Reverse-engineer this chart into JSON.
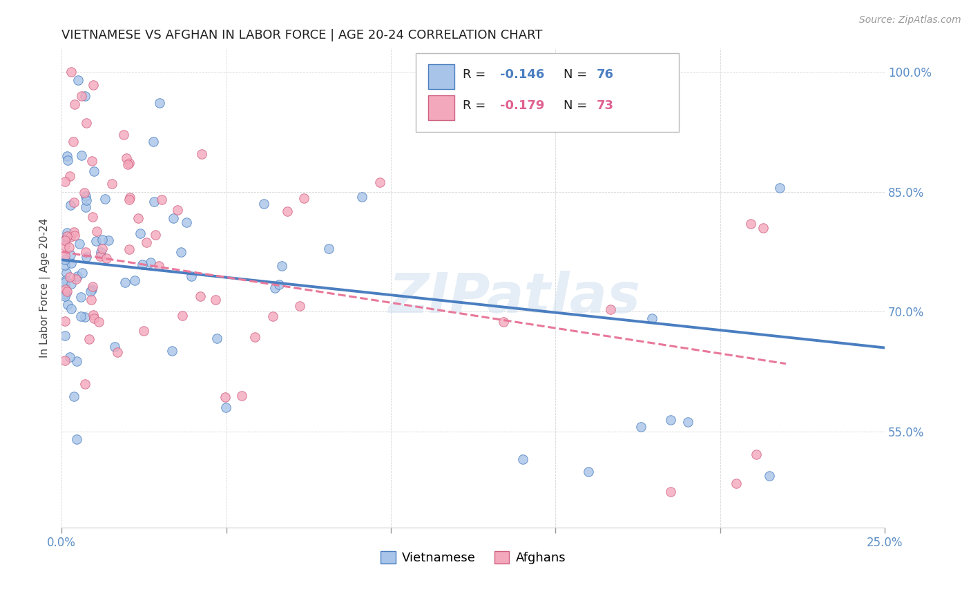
{
  "title": "VIETNAMESE VS AFGHAN IN LABOR FORCE | AGE 20-24 CORRELATION CHART",
  "source": "Source: ZipAtlas.com",
  "ylabel": "In Labor Force | Age 20-24",
  "xlim": [
    0.0,
    0.25
  ],
  "ylim": [
    0.43,
    1.03
  ],
  "ytick_labels_right": [
    "55.0%",
    "70.0%",
    "85.0%",
    "100.0%"
  ],
  "ytick_vals_right": [
    0.55,
    0.7,
    0.85,
    1.0
  ],
  "r_vietnamese": -0.146,
  "n_vietnamese": 76,
  "r_afghan": -0.179,
  "n_afghan": 73,
  "color_vietnamese": "#a8c4e8",
  "color_afghan": "#f4a8bc",
  "color_line_vietnamese": "#4a7ec0",
  "color_line_afghan": "#e8789a",
  "watermark": "ZIPatlas",
  "background_color": "#ffffff",
  "legend_label_1": "Vietnamese",
  "legend_label_2": "Afghans",
  "viet_trendline_x": [
    0.0,
    0.25
  ],
  "viet_trendline_y": [
    0.765,
    0.655
  ],
  "afghan_trendline_x": [
    0.0,
    0.22
  ],
  "afghan_trendline_y": [
    0.775,
    0.635
  ]
}
